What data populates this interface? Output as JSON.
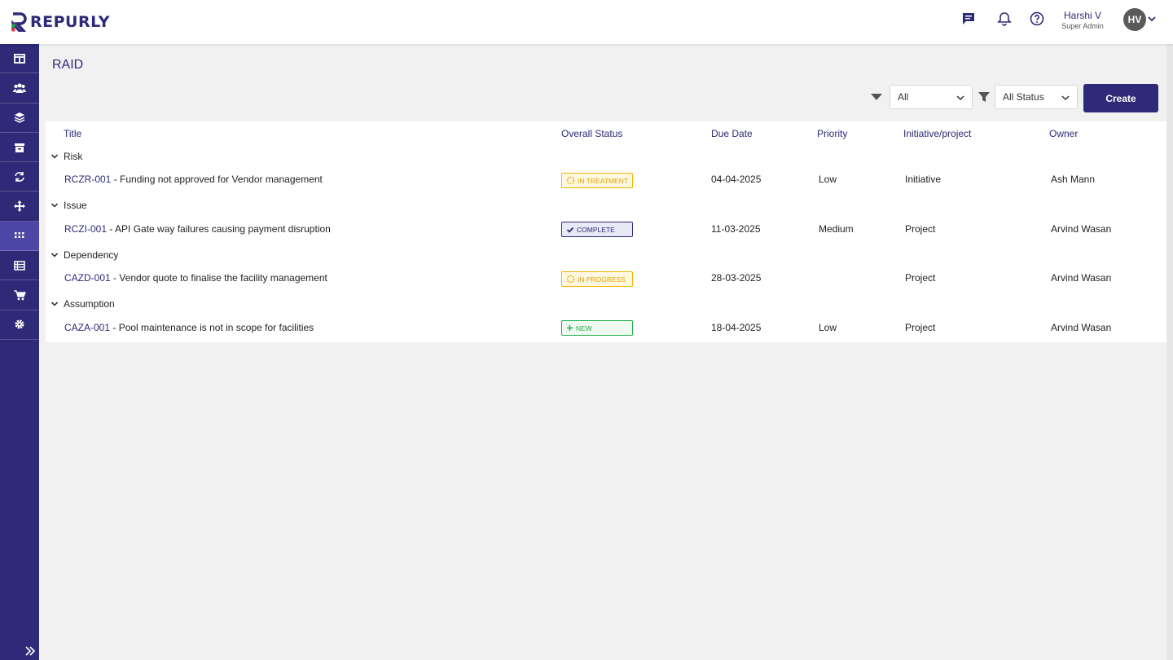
{
  "app": {
    "logo_text": "REPURLY",
    "user": {
      "name": "Harshi V",
      "role": "Super Admin",
      "initials": "HV"
    }
  },
  "colors": {
    "brand": "#2e2a78",
    "active": "#4c47a6",
    "treatment": "#f1b400",
    "complete": "#2e2a78",
    "new": "#1fae4b"
  },
  "header_icons": [
    "chat-icon",
    "bell-icon",
    "help-icon"
  ],
  "sidebar": {
    "items": [
      {
        "icon": "dashboard-icon"
      },
      {
        "icon": "users-icon"
      },
      {
        "icon": "layers-icon"
      },
      {
        "icon": "archive-icon"
      },
      {
        "icon": "sync-icon"
      },
      {
        "icon": "move-icon"
      },
      {
        "icon": "apps-grid-icon",
        "active": true
      },
      {
        "icon": "table-icon"
      },
      {
        "icon": "cart-icon"
      },
      {
        "icon": "gear-icon"
      }
    ]
  },
  "page": {
    "title": "RAID",
    "filter_type": {
      "value": "All"
    },
    "filter_status": {
      "value": "All Status"
    },
    "create_label": "Create"
  },
  "table": {
    "headers": {
      "title": "Title",
      "status": "Overall Status",
      "due": "Due Date",
      "priority": "Priority",
      "initiative": "Initiative/project",
      "owner": "Owner"
    },
    "groups": [
      {
        "name": "Risk",
        "rows": [
          {
            "code": "RCZR-001",
            "title": "- Funding not approved for Vendor management",
            "status": "IN TREATMENT",
            "due": "04-04-2025",
            "priority": "Low",
            "initiative": "Initiative",
            "owner": "Ash Mann"
          }
        ]
      },
      {
        "name": "Issue",
        "rows": [
          {
            "code": "RCZI-001",
            "title": "- API Gate way failures causing payment disruption",
            "status": "COMPLETE",
            "due": "11-03-2025",
            "priority": "Medium",
            "initiative": "Project",
            "owner": "Arvind Wasan"
          }
        ]
      },
      {
        "name": "Dependency",
        "rows": [
          {
            "code": "CAZD-001",
            "title": "- Vendor quote to finalise the facility management",
            "status": "IN PROGRESS",
            "due": "28-03-2025",
            "priority": "",
            "initiative": "Project",
            "owner": "Arvind Wasan"
          }
        ]
      },
      {
        "name": "Assumption",
        "rows": [
          {
            "code": "CAZA-001",
            "title": "- Pool maintenance is not in scope for facilities",
            "status": "NEW",
            "due": "18-04-2025",
            "priority": "Low",
            "initiative": "Project",
            "owner": "Arvind Wasan"
          }
        ]
      }
    ]
  }
}
